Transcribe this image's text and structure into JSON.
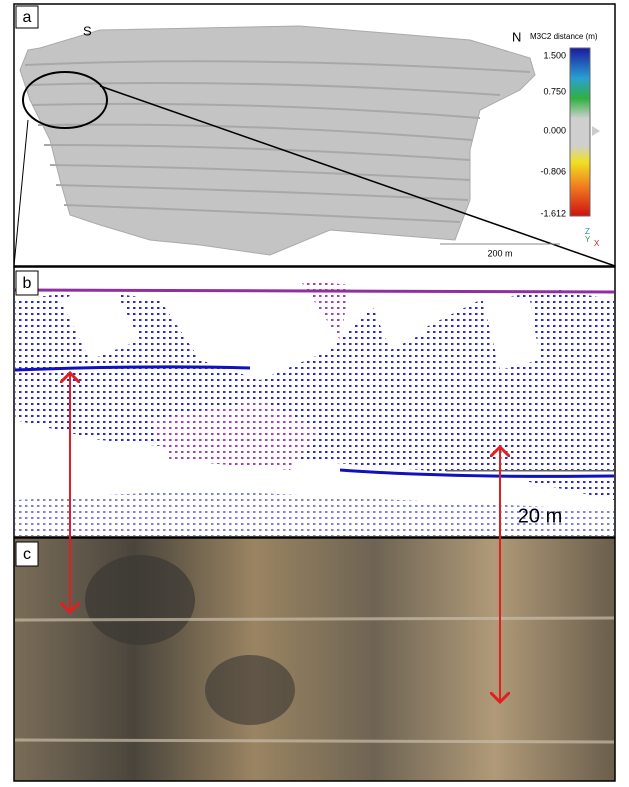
{
  "panels": {
    "a": {
      "label": "a",
      "south": "S",
      "north": "N",
      "colorbar": {
        "title": "M3C2 distance (m)",
        "ticks": [
          "1.500",
          "0.750",
          "0.000",
          "-0.806",
          "-1.612"
        ]
      },
      "scale": "200 m",
      "axes": [
        "Z",
        "Y",
        "X"
      ]
    },
    "b": {
      "label": "b",
      "scale": "20 m"
    },
    "c": {
      "label": "c"
    }
  }
}
